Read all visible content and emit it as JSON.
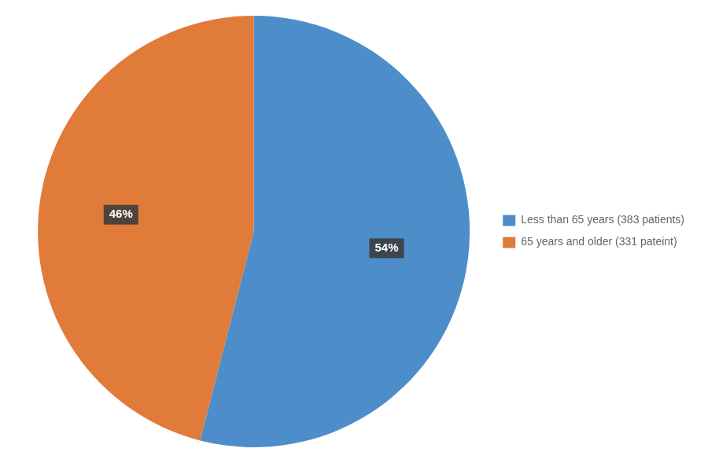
{
  "chart_data": {
    "type": "pie",
    "categories": [
      "Less than 65 years (383 patients)",
      "65 years and older (331 pateint)"
    ],
    "values": [
      54,
      46
    ],
    "value_labels": [
      "54%",
      "46%"
    ],
    "colors": [
      "#4D8DC9",
      "#E07B39"
    ],
    "data_labels": true,
    "legend": "right"
  }
}
